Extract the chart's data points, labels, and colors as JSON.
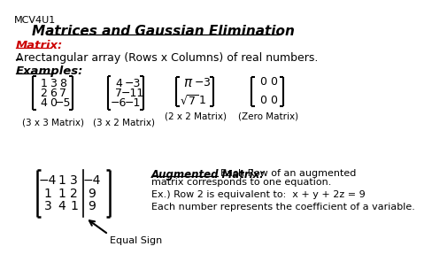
{
  "title": "Matrices and Gaussian Elimination",
  "course_code": "MCV4U1",
  "bg_color": "#ffffff",
  "red_color": "#cc0000",
  "matrix_label": "Matrix:",
  "definition_A": "A",
  "definition_rest": " rectangular array (Rows x Columns) of real numbers.",
  "examples_label": "Examples:",
  "matrix1_label": "(3 x 3 Matrix)",
  "matrix2_label": "(3 x 2 Matrix)",
  "matrix3_label": "(2 x 2 Matrix)",
  "matrix4_label": "(Zero Matrix)",
  "augmented_title": "Augmented Matrix:",
  "augmented_desc1": "Each Row of an augmented",
  "augmented_desc2": "matrix corresponds to one equation.",
  "augmented_ex": "Ex.) Row 2 is equivalent to:  x + y + 2z = 9",
  "augmented_coeff": "Each number represents the coefficient of a variable.",
  "equal_sign_label": "Equal Sign"
}
